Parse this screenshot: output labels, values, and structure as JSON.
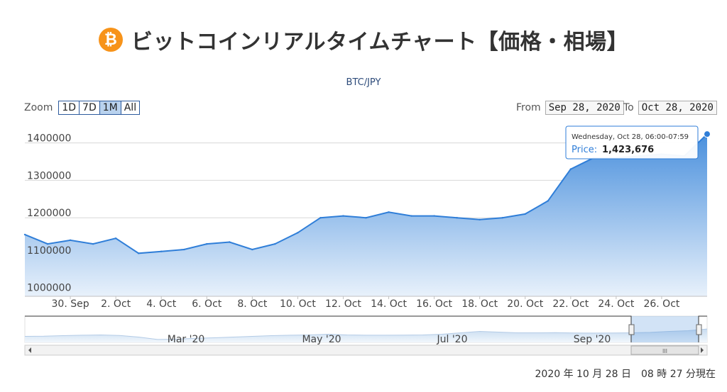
{
  "page": {
    "title": "ビットコインリアルタイムチャート【価格・相場】",
    "coin_symbol": "₿",
    "footer_timestamp": "2020 年 10 月 28 日　08 時 27 分現在"
  },
  "controls": {
    "zoom_label": "Zoom",
    "zoom_buttons": [
      "1D",
      "7D",
      "1M",
      "All"
    ],
    "active_zoom": "1M",
    "from_label": "From",
    "from_value": "Sep 28, 2020",
    "to_label": "To",
    "to_value": "Oct 28, 2020"
  },
  "tooltip": {
    "header": "Wednesday, Oct 28, 06:00-07:59",
    "series_label": "Price:",
    "value": "1,423,676"
  },
  "navigator": {
    "labels": [
      "Mar '20",
      "May '20",
      "Jul '20",
      "Sep '20"
    ],
    "scroll_thumb_icon": "III"
  },
  "colors": {
    "line": "#2f7ed8",
    "area_top": "#4a90dd",
    "area_bottom": "#e8f1fb",
    "accent": "#f7931a"
  },
  "chart_data": {
    "type": "area",
    "title": "BTC/JPY",
    "series": [
      {
        "name": "Price",
        "x": [
          "2020-09-28",
          "2020-09-29",
          "2020-09-30",
          "2020-10-01",
          "2020-10-02",
          "2020-10-03",
          "2020-10-04",
          "2020-10-05",
          "2020-10-06",
          "2020-10-07",
          "2020-10-08",
          "2020-10-09",
          "2020-10-10",
          "2020-10-11",
          "2020-10-12",
          "2020-10-13",
          "2020-10-14",
          "2020-10-15",
          "2020-10-16",
          "2020-10-17",
          "2020-10-18",
          "2020-10-19",
          "2020-10-20",
          "2020-10-21",
          "2020-10-22",
          "2020-10-23",
          "2020-10-24",
          "2020-10-25",
          "2020-10-26",
          "2020-10-27",
          "2020-10-28"
        ],
        "values": [
          1155000,
          1130000,
          1140000,
          1130000,
          1145000,
          1105000,
          1110000,
          1115000,
          1130000,
          1135000,
          1115000,
          1130000,
          1160000,
          1200000,
          1205000,
          1200000,
          1215000,
          1205000,
          1205000,
          1200000,
          1195000,
          1200000,
          1210000,
          1245000,
          1330000,
          1360000,
          1360000,
          1365000,
          1370000,
          1365000,
          1423676
        ]
      }
    ],
    "y_ticks": [
      1000000,
      1100000,
      1200000,
      1300000,
      1400000
    ],
    "ylim": [
      990000,
      1460000
    ],
    "x_tick_labels": [
      "30. Sep",
      "2. Oct",
      "4. Oct",
      "6. Oct",
      "8. Oct",
      "10. Oct",
      "12. Oct",
      "14. Oct",
      "16. Oct",
      "18. Oct",
      "20. Oct",
      "22. Oct",
      "24. Oct",
      "26. Oct"
    ],
    "x_tick_dates": [
      "2020-09-30",
      "2020-10-02",
      "2020-10-04",
      "2020-10-06",
      "2020-10-08",
      "2020-10-10",
      "2020-10-12",
      "2020-10-14",
      "2020-10-16",
      "2020-10-18",
      "2020-10-20",
      "2020-10-22",
      "2020-10-24",
      "2020-10-26"
    ],
    "grid": true,
    "legend": false,
    "navigator_values": [
      900000,
      910000,
      950000,
      980000,
      1000000,
      960000,
      850000,
      680000,
      700000,
      760000,
      800000,
      850000,
      900000,
      950000,
      980000,
      1000000,
      1050000,
      1000000,
      980000,
      980000,
      990000,
      1000000,
      1050000,
      1150000,
      1250000,
      1200000,
      1150000,
      1150000,
      1160000,
      1140000,
      1130000,
      1140000,
      1150000,
      1180000,
      1250000,
      1300000,
      1420000
    ]
  }
}
